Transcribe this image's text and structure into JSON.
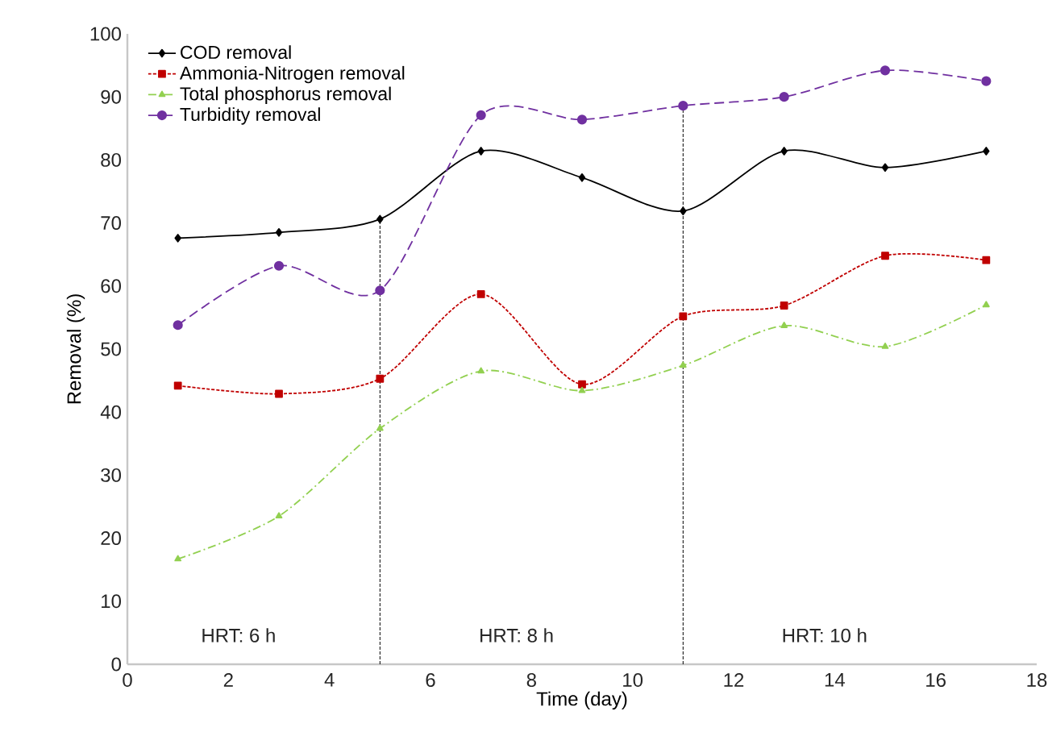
{
  "chart_data": {
    "type": "line",
    "xlabel": "Time (day)",
    "ylabel": "Removal (%)",
    "x": [
      1,
      3,
      5,
      7,
      9,
      11,
      13,
      15,
      17
    ],
    "series": [
      {
        "name": "COD removal",
        "color": "#000000",
        "marker": "diamond",
        "line_style": "solid",
        "values": [
          67.6,
          68.5,
          70.6,
          81.4,
          77.2,
          71.9,
          81.4,
          78.8,
          81.4
        ]
      },
      {
        "name": "Ammonia-Nitrogen removal",
        "color": "#c00000",
        "marker": "square",
        "line_style": "dotted",
        "values": [
          44.2,
          42.9,
          45.3,
          58.7,
          44.4,
          55.2,
          56.9,
          64.8,
          64.1
        ]
      },
      {
        "name": "Total phosphorus removal",
        "color": "#92d050",
        "marker": "triangle",
        "line_style": "dashdot",
        "values": [
          16.7,
          23.5,
          37.4,
          46.5,
          43.4,
          47.4,
          53.7,
          50.4,
          57.0
        ]
      },
      {
        "name": "Turbidity removal",
        "color": "#7030a0",
        "marker": "circle",
        "line_style": "dashed",
        "values": [
          53.8,
          63.2,
          59.3,
          87.1,
          86.4,
          88.6,
          90.0,
          94.2,
          92.5
        ]
      }
    ],
    "xlim": [
      0,
      18
    ],
    "xticks": [
      0,
      2,
      4,
      6,
      8,
      10,
      12,
      14,
      16,
      18
    ],
    "ylim": [
      0,
      100
    ],
    "yticks": [
      0,
      10,
      20,
      30,
      40,
      50,
      60,
      70,
      80,
      90,
      100
    ],
    "ref_lines": [
      {
        "axis": "x",
        "value": 5,
        "color": "#000000",
        "line_style": "dotted"
      },
      {
        "axis": "x",
        "value": 11,
        "color": "#000000",
        "line_style": "dotted"
      }
    ],
    "annotations": [
      "HRT: 6 h",
      "HRT: 8 h",
      "HRT: 10 h"
    ],
    "legend": "top left",
    "grid": false
  }
}
